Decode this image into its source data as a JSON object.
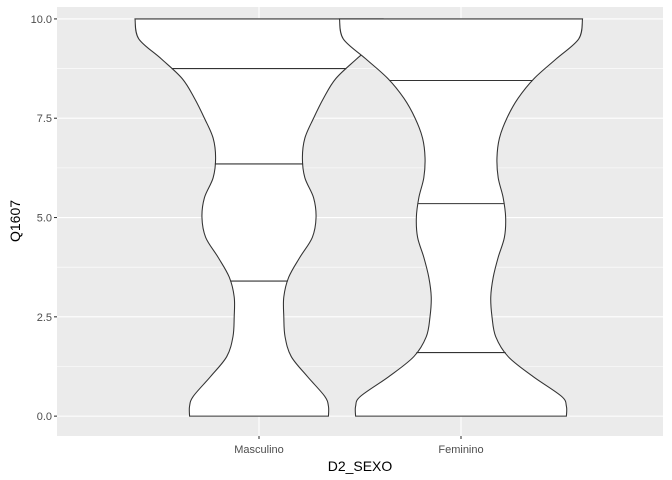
{
  "chart_data": {
    "type": "violin",
    "title": "",
    "xlabel": "D2_SEXO",
    "ylabel": "Q1607",
    "ylim": [
      -0.5,
      10.3
    ],
    "yticks": [
      0.0,
      2.5,
      5.0,
      7.5,
      10.0
    ],
    "ytick_labels": [
      "0.0",
      "2.5",
      "5.0",
      "7.5",
      "10.0"
    ],
    "categories": [
      "Masculino",
      "Feminino"
    ],
    "draw_quantiles": [
      0.25,
      0.5,
      0.75
    ],
    "grid": true,
    "background": "#ebebeb",
    "grid_major_color": "#ffffff",
    "violin_fill": "#ffffff",
    "violin_stroke": "#333333",
    "series": [
      {
        "category": "Masculino",
        "quantiles": [
          3.4,
          6.35,
          8.75
        ],
        "density_profile": {
          "y": [
            0.0,
            0.25,
            0.5,
            1.0,
            1.5,
            2.0,
            2.5,
            3.0,
            3.5,
            4.0,
            4.5,
            5.0,
            5.5,
            6.0,
            6.5,
            7.0,
            7.5,
            8.0,
            8.5,
            9.0,
            9.5,
            10.0
          ],
          "half_width": [
            0.56,
            0.56,
            0.53,
            0.39,
            0.26,
            0.21,
            0.2,
            0.2,
            0.24,
            0.33,
            0.43,
            0.46,
            0.44,
            0.37,
            0.35,
            0.37,
            0.44,
            0.52,
            0.62,
            0.79,
            0.97,
            1.0
          ]
        }
      },
      {
        "category": "Feminino",
        "quantiles": [
          1.6,
          5.35,
          8.45
        ],
        "density_profile": {
          "y": [
            0.0,
            0.25,
            0.5,
            1.0,
            1.5,
            2.0,
            2.5,
            3.0,
            3.5,
            4.0,
            4.5,
            5.0,
            5.5,
            6.0,
            6.5,
            7.0,
            7.5,
            8.0,
            8.5,
            9.0,
            9.5,
            10.0
          ],
          "half_width": [
            0.85,
            0.85,
            0.81,
            0.58,
            0.38,
            0.28,
            0.25,
            0.24,
            0.26,
            0.3,
            0.35,
            0.36,
            0.34,
            0.3,
            0.29,
            0.31,
            0.37,
            0.46,
            0.59,
            0.77,
            0.95,
            0.98
          ]
        }
      }
    ]
  }
}
